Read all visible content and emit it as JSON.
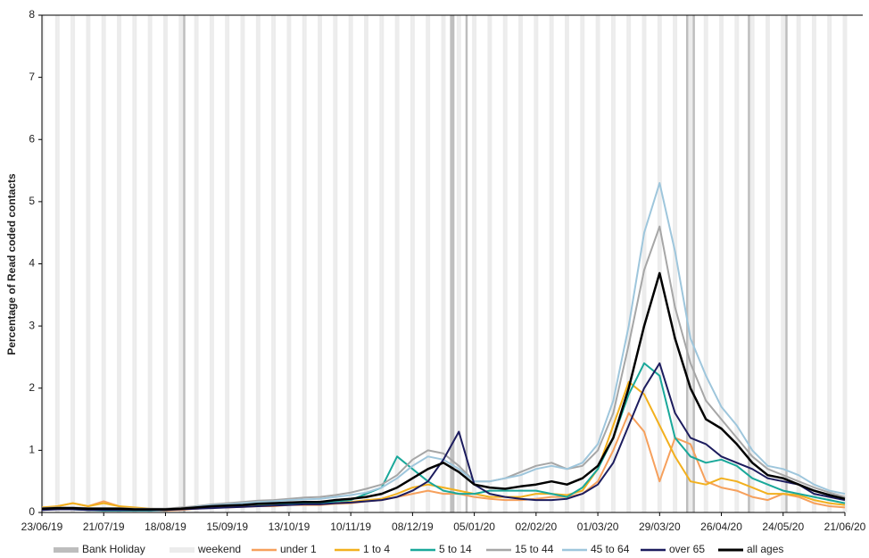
{
  "chart_data": {
    "type": "line",
    "y_label": "Percentage of Read coded contacts",
    "xlim": [
      "23/06/19",
      "21/06/20"
    ],
    "xticks": [
      "23/06/19",
      "21/07/19",
      "18/08/19",
      "15/09/19",
      "13/10/19",
      "10/11/19",
      "08/12/19",
      "05/01/20",
      "02/02/20",
      "01/03/20",
      "29/03/20",
      "26/04/20",
      "24/05/20",
      "21/06/20"
    ],
    "ylim": [
      0,
      8
    ],
    "yticks": [
      0,
      1,
      2,
      3,
      4,
      5,
      6,
      7,
      8
    ],
    "grid": false,
    "bank_holidays": {
      "name": "Bank Holiday",
      "color": "#bdbdbd",
      "dates": [
        "26/08/19",
        "25/12/19",
        "26/12/19",
        "01/01/20",
        "10/04/20",
        "13/04/20",
        "08/05/20",
        "25/05/20"
      ]
    },
    "weekend": {
      "name": "weekend",
      "color": "#ececec"
    },
    "x": [
      "23/06/19",
      "30/06/19",
      "07/07/19",
      "14/07/19",
      "21/07/19",
      "28/07/19",
      "04/08/19",
      "11/08/19",
      "18/08/19",
      "25/08/19",
      "01/09/19",
      "08/09/19",
      "15/09/19",
      "22/09/19",
      "29/09/19",
      "06/10/19",
      "13/10/19",
      "20/10/19",
      "27/10/19",
      "03/11/19",
      "10/11/19",
      "17/11/19",
      "24/11/19",
      "01/12/19",
      "08/12/19",
      "15/12/19",
      "22/12/19",
      "29/12/19",
      "05/01/20",
      "12/01/20",
      "19/01/20",
      "26/01/20",
      "02/02/20",
      "09/02/20",
      "16/02/20",
      "23/02/20",
      "01/03/20",
      "08/03/20",
      "15/03/20",
      "22/03/20",
      "29/03/20",
      "05/04/20",
      "12/04/20",
      "19/04/20",
      "26/04/20",
      "03/05/20",
      "10/05/20",
      "17/05/20",
      "24/05/20",
      "31/05/20",
      "07/06/20",
      "14/06/20",
      "21/06/20"
    ],
    "series": [
      {
        "name": "under 1",
        "color": "#f6a05c",
        "values": [
          0.05,
          0.1,
          0.15,
          0.1,
          0.18,
          0.1,
          0.05,
          0.04,
          0.03,
          0.04,
          0.06,
          0.08,
          0.08,
          0.09,
          0.1,
          0.1,
          0.12,
          0.12,
          0.12,
          0.14,
          0.15,
          0.18,
          0.2,
          0.25,
          0.3,
          0.35,
          0.3,
          0.3,
          0.25,
          0.22,
          0.2,
          0.2,
          0.22,
          0.25,
          0.25,
          0.3,
          0.5,
          1.0,
          1.6,
          1.3,
          0.5,
          1.2,
          1.1,
          0.5,
          0.4,
          0.35,
          0.25,
          0.2,
          0.3,
          0.25,
          0.15,
          0.1,
          0.08
        ]
      },
      {
        "name": "1 to 4",
        "color": "#f2b01e",
        "values": [
          0.08,
          0.1,
          0.15,
          0.1,
          0.15,
          0.1,
          0.08,
          0.06,
          0.05,
          0.06,
          0.08,
          0.1,
          0.1,
          0.1,
          0.12,
          0.12,
          0.13,
          0.14,
          0.14,
          0.15,
          0.17,
          0.2,
          0.22,
          0.3,
          0.4,
          0.45,
          0.4,
          0.35,
          0.3,
          0.25,
          0.25,
          0.25,
          0.3,
          0.3,
          0.28,
          0.35,
          0.7,
          1.4,
          2.1,
          1.9,
          1.4,
          0.9,
          0.5,
          0.45,
          0.55,
          0.5,
          0.4,
          0.3,
          0.3,
          0.28,
          0.2,
          0.15,
          0.12
        ]
      },
      {
        "name": "5 to 14",
        "color": "#1aa89a",
        "values": [
          0.05,
          0.05,
          0.05,
          0.04,
          0.03,
          0.03,
          0.03,
          0.03,
          0.04,
          0.06,
          0.1,
          0.12,
          0.12,
          0.12,
          0.13,
          0.14,
          0.14,
          0.15,
          0.15,
          0.18,
          0.2,
          0.3,
          0.4,
          0.9,
          0.7,
          0.5,
          0.35,
          0.3,
          0.3,
          0.35,
          0.35,
          0.35,
          0.35,
          0.3,
          0.25,
          0.4,
          0.7,
          1.2,
          1.9,
          2.4,
          2.2,
          1.2,
          0.9,
          0.8,
          0.85,
          0.75,
          0.55,
          0.45,
          0.35,
          0.3,
          0.25,
          0.2,
          0.15
        ]
      },
      {
        "name": "15 to 44",
        "color": "#a6a6a6",
        "values": [
          0.07,
          0.08,
          0.08,
          0.07,
          0.07,
          0.07,
          0.06,
          0.06,
          0.06,
          0.08,
          0.1,
          0.13,
          0.15,
          0.17,
          0.19,
          0.2,
          0.22,
          0.24,
          0.25,
          0.28,
          0.32,
          0.38,
          0.45,
          0.6,
          0.85,
          1.0,
          0.95,
          0.75,
          0.5,
          0.5,
          0.55,
          0.65,
          0.75,
          0.8,
          0.7,
          0.75,
          1.0,
          1.6,
          2.7,
          3.9,
          4.6,
          3.3,
          2.4,
          1.8,
          1.5,
          1.2,
          0.9,
          0.7,
          0.6,
          0.5,
          0.4,
          0.32,
          0.25
        ]
      },
      {
        "name": "45 to 64",
        "color": "#9ec6dc",
        "values": [
          0.05,
          0.06,
          0.06,
          0.05,
          0.05,
          0.05,
          0.05,
          0.05,
          0.05,
          0.06,
          0.09,
          0.12,
          0.13,
          0.15,
          0.17,
          0.18,
          0.2,
          0.21,
          0.22,
          0.25,
          0.28,
          0.32,
          0.4,
          0.55,
          0.75,
          0.9,
          0.85,
          0.7,
          0.5,
          0.5,
          0.55,
          0.6,
          0.7,
          0.75,
          0.7,
          0.8,
          1.1,
          1.8,
          3.0,
          4.5,
          5.3,
          4.2,
          2.8,
          2.2,
          1.7,
          1.4,
          1.0,
          0.75,
          0.7,
          0.6,
          0.45,
          0.35,
          0.3
        ]
      },
      {
        "name": "over 65",
        "color": "#1c1c5e",
        "values": [
          0.04,
          0.05,
          0.05,
          0.04,
          0.04,
          0.04,
          0.04,
          0.04,
          0.04,
          0.05,
          0.06,
          0.07,
          0.08,
          0.09,
          0.1,
          0.11,
          0.12,
          0.13,
          0.13,
          0.15,
          0.16,
          0.18,
          0.2,
          0.25,
          0.35,
          0.5,
          0.85,
          1.3,
          0.45,
          0.3,
          0.25,
          0.22,
          0.2,
          0.2,
          0.22,
          0.3,
          0.45,
          0.8,
          1.4,
          2.0,
          2.4,
          1.6,
          1.2,
          1.1,
          0.9,
          0.8,
          0.7,
          0.55,
          0.5,
          0.45,
          0.3,
          0.25,
          0.2
        ]
      },
      {
        "name": "all ages",
        "color": "#000000",
        "values": [
          0.06,
          0.07,
          0.07,
          0.06,
          0.06,
          0.06,
          0.05,
          0.05,
          0.05,
          0.06,
          0.08,
          0.1,
          0.11,
          0.12,
          0.14,
          0.15,
          0.16,
          0.17,
          0.17,
          0.2,
          0.22,
          0.25,
          0.3,
          0.4,
          0.55,
          0.7,
          0.8,
          0.65,
          0.45,
          0.4,
          0.38,
          0.42,
          0.45,
          0.5,
          0.45,
          0.55,
          0.75,
          1.2,
          2.0,
          3.0,
          3.85,
          2.8,
          2.0,
          1.5,
          1.35,
          1.1,
          0.8,
          0.6,
          0.55,
          0.45,
          0.35,
          0.28,
          0.22
        ]
      }
    ]
  }
}
